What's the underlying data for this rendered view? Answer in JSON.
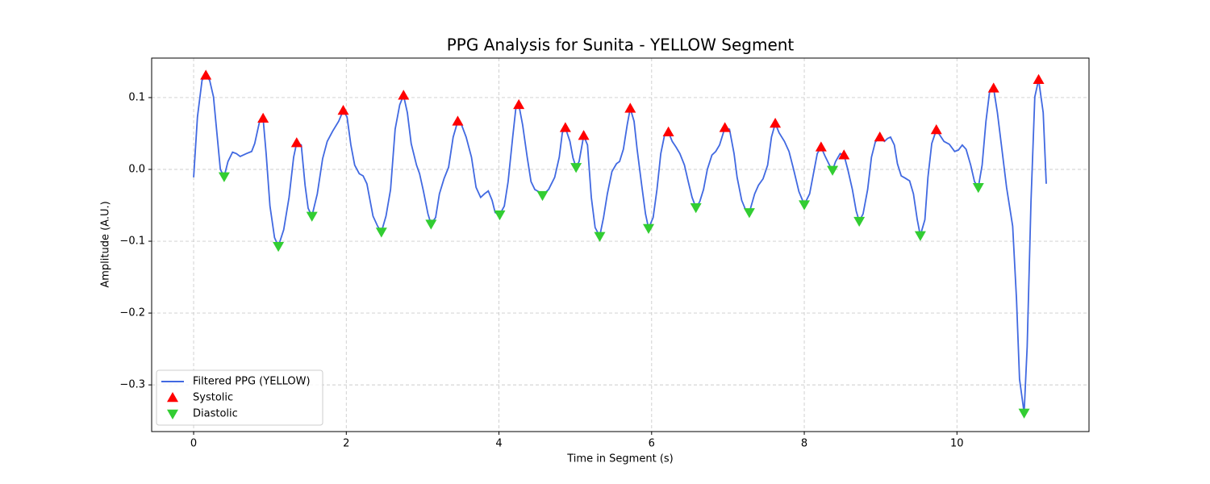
{
  "chart_data": {
    "type": "line",
    "title": "PPG Analysis for Sunita - YELLOW Segment",
    "xlabel": "Time in Segment (s)",
    "ylabel": "Amplitude (A.U.)",
    "xlim": [
      -0.55,
      11.73
    ],
    "ylim": [
      -0.365,
      0.155
    ],
    "xticks": [
      0,
      2,
      4,
      6,
      8,
      10
    ],
    "yticks": [
      {
        "value": -0.3,
        "label": "−0.3"
      },
      {
        "value": -0.2,
        "label": "−0.2"
      },
      {
        "value": -0.1,
        "label": "−0.1"
      },
      {
        "value": 0,
        "label": "0.0"
      },
      0.1
    ],
    "grid": true,
    "legend": "lower left",
    "series": [
      {
        "name": "Filtered PPG (YELLOW)",
        "color": "#4169e1",
        "marker": "line",
        "x": [
          0,
          0.05,
          0.11,
          0.16,
          0.21,
          0.26,
          0.35,
          0.4,
          0.45,
          0.51,
          0.56,
          0.61,
          0.69,
          0.76,
          0.8,
          0.86,
          0.91,
          0.95,
          1.0,
          1.06,
          1.11,
          1.18,
          1.25,
          1.31,
          1.35,
          1.41,
          1.46,
          1.5,
          1.55,
          1.62,
          1.69,
          1.75,
          1.82,
          1.9,
          1.96,
          2.01,
          2.06,
          2.11,
          2.17,
          2.22,
          2.27,
          2.35,
          2.41,
          2.46,
          2.52,
          2.58,
          2.64,
          2.7,
          2.75,
          2.8,
          2.85,
          2.92,
          2.96,
          3.01,
          3.07,
          3.11,
          3.17,
          3.22,
          3.28,
          3.34,
          3.4,
          3.46,
          3.51,
          3.57,
          3.64,
          3.7,
          3.76,
          3.81,
          3.86,
          3.91,
          3.95,
          4.01,
          4.07,
          4.12,
          4.18,
          4.22,
          4.26,
          4.31,
          4.37,
          4.42,
          4.47,
          4.52,
          4.57,
          4.65,
          4.73,
          4.79,
          4.83,
          4.87,
          4.93,
          4.97,
          5.01,
          5.05,
          5.11,
          5.16,
          5.21,
          5.26,
          5.32,
          5.37,
          5.42,
          5.48,
          5.54,
          5.58,
          5.63,
          5.68,
          5.72,
          5.77,
          5.81,
          5.87,
          5.92,
          5.96,
          6.02,
          6.07,
          6.12,
          6.17,
          6.22,
          6.27,
          6.32,
          6.37,
          6.43,
          6.48,
          6.53,
          6.58,
          6.63,
          6.68,
          6.73,
          6.79,
          6.84,
          6.89,
          6.96,
          7.02,
          7.08,
          7.12,
          7.18,
          7.23,
          7.28,
          7.35,
          7.4,
          7.46,
          7.52,
          7.57,
          7.62,
          7.67,
          7.74,
          7.8,
          7.86,
          7.93,
          8.0,
          8.07,
          8.12,
          8.17,
          8.22,
          8.27,
          8.33,
          8.37,
          8.41,
          8.47,
          8.52,
          8.57,
          8.63,
          8.68,
          8.72,
          8.77,
          8.83,
          8.88,
          8.93,
          8.99,
          9.05,
          9.09,
          9.13,
          9.18,
          9.22,
          9.27,
          9.32,
          9.38,
          9.43,
          9.48,
          9.52,
          9.58,
          9.62,
          9.67,
          9.73,
          9.78,
          9.83,
          9.9,
          9.97,
          10.02,
          10.07,
          10.12,
          10.18,
          10.23,
          10.28,
          10.33,
          10.38,
          10.43,
          10.48,
          10.53,
          10.58,
          10.65,
          10.73,
          10.78,
          10.82,
          10.88,
          10.92,
          10.97,
          11.02,
          11.07,
          11.13,
          11.17
        ],
        "values": [
          -0.011,
          0.073,
          0.124,
          0.131,
          0.124,
          0.101,
          0.0,
          -0.01,
          0.011,
          0.024,
          0.022,
          0.018,
          0.022,
          0.025,
          0.036,
          0.065,
          0.071,
          0.022,
          -0.051,
          -0.095,
          -0.107,
          -0.084,
          -0.039,
          0.017,
          0.037,
          0.034,
          -0.022,
          -0.054,
          -0.065,
          -0.034,
          0.015,
          0.039,
          0.053,
          0.067,
          0.082,
          0.073,
          0.034,
          0.006,
          -0.006,
          -0.009,
          -0.02,
          -0.065,
          -0.079,
          -0.087,
          -0.065,
          -0.028,
          0.056,
          0.09,
          0.103,
          0.079,
          0.036,
          0.006,
          -0.006,
          -0.03,
          -0.062,
          -0.076,
          -0.067,
          -0.034,
          -0.013,
          0.003,
          0.045,
          0.067,
          0.062,
          0.045,
          0.017,
          -0.025,
          -0.039,
          -0.034,
          -0.03,
          -0.043,
          -0.06,
          -0.063,
          -0.051,
          -0.017,
          0.045,
          0.084,
          0.09,
          0.062,
          0.017,
          -0.017,
          -0.028,
          -0.031,
          -0.036,
          -0.028,
          -0.011,
          0.017,
          0.051,
          0.058,
          0.039,
          0.016,
          0.003,
          0.011,
          0.047,
          0.034,
          -0.039,
          -0.081,
          -0.093,
          -0.067,
          -0.034,
          -0.003,
          0.008,
          0.011,
          0.028,
          0.062,
          0.085,
          0.067,
          0.028,
          -0.022,
          -0.062,
          -0.082,
          -0.067,
          -0.028,
          0.022,
          0.048,
          0.052,
          0.039,
          0.031,
          0.022,
          0.006,
          -0.017,
          -0.039,
          -0.053,
          -0.045,
          -0.028,
          0.0,
          0.02,
          0.025,
          0.034,
          0.058,
          0.056,
          0.022,
          -0.011,
          -0.043,
          -0.056,
          -0.06,
          -0.034,
          -0.022,
          -0.013,
          0.006,
          0.045,
          0.064,
          0.051,
          0.039,
          0.025,
          0.0,
          -0.031,
          -0.049,
          -0.034,
          -0.006,
          0.022,
          0.031,
          0.019,
          0.006,
          -0.001,
          0.011,
          0.022,
          0.02,
          0.0,
          -0.028,
          -0.058,
          -0.072,
          -0.062,
          -0.028,
          0.017,
          0.038,
          0.045,
          0.039,
          0.043,
          0.045,
          0.034,
          0.008,
          -0.009,
          -0.012,
          -0.016,
          -0.034,
          -0.07,
          -0.092,
          -0.07,
          -0.011,
          0.036,
          0.055,
          0.047,
          0.039,
          0.035,
          0.025,
          0.027,
          0.034,
          0.028,
          0.006,
          -0.017,
          -0.025,
          0.006,
          0.067,
          0.11,
          0.113,
          0.079,
          0.036,
          -0.025,
          -0.079,
          -0.18,
          -0.292,
          -0.339,
          -0.247,
          -0.045,
          0.101,
          0.125,
          0.079,
          -0.02
        ]
      },
      {
        "name": "Systolic",
        "color": "#ff0000",
        "marker": "triangle-up",
        "x": [
          0.16,
          0.91,
          1.35,
          1.96,
          2.75,
          3.46,
          4.26,
          4.87,
          5.11,
          5.72,
          6.22,
          6.96,
          7.62,
          8.22,
          8.52,
          8.99,
          9.73,
          10.48,
          11.07
        ],
        "values": [
          0.131,
          0.071,
          0.037,
          0.082,
          0.103,
          0.067,
          0.09,
          0.058,
          0.047,
          0.085,
          0.052,
          0.058,
          0.064,
          0.031,
          0.02,
          0.045,
          0.055,
          0.113,
          0.125
        ]
      },
      {
        "name": "Diastolic",
        "color": "#32cd32",
        "marker": "triangle-down",
        "x": [
          0.4,
          1.11,
          1.55,
          2.46,
          3.11,
          4.01,
          4.57,
          5.01,
          5.32,
          5.96,
          6.58,
          7.28,
          8.0,
          8.37,
          8.72,
          9.52,
          10.28,
          10.88
        ],
        "values": [
          -0.01,
          -0.107,
          -0.065,
          -0.087,
          -0.076,
          -0.063,
          -0.036,
          0.003,
          -0.093,
          -0.082,
          -0.053,
          -0.06,
          -0.049,
          -0.001,
          -0.072,
          -0.092,
          -0.025,
          -0.339
        ]
      }
    ]
  }
}
